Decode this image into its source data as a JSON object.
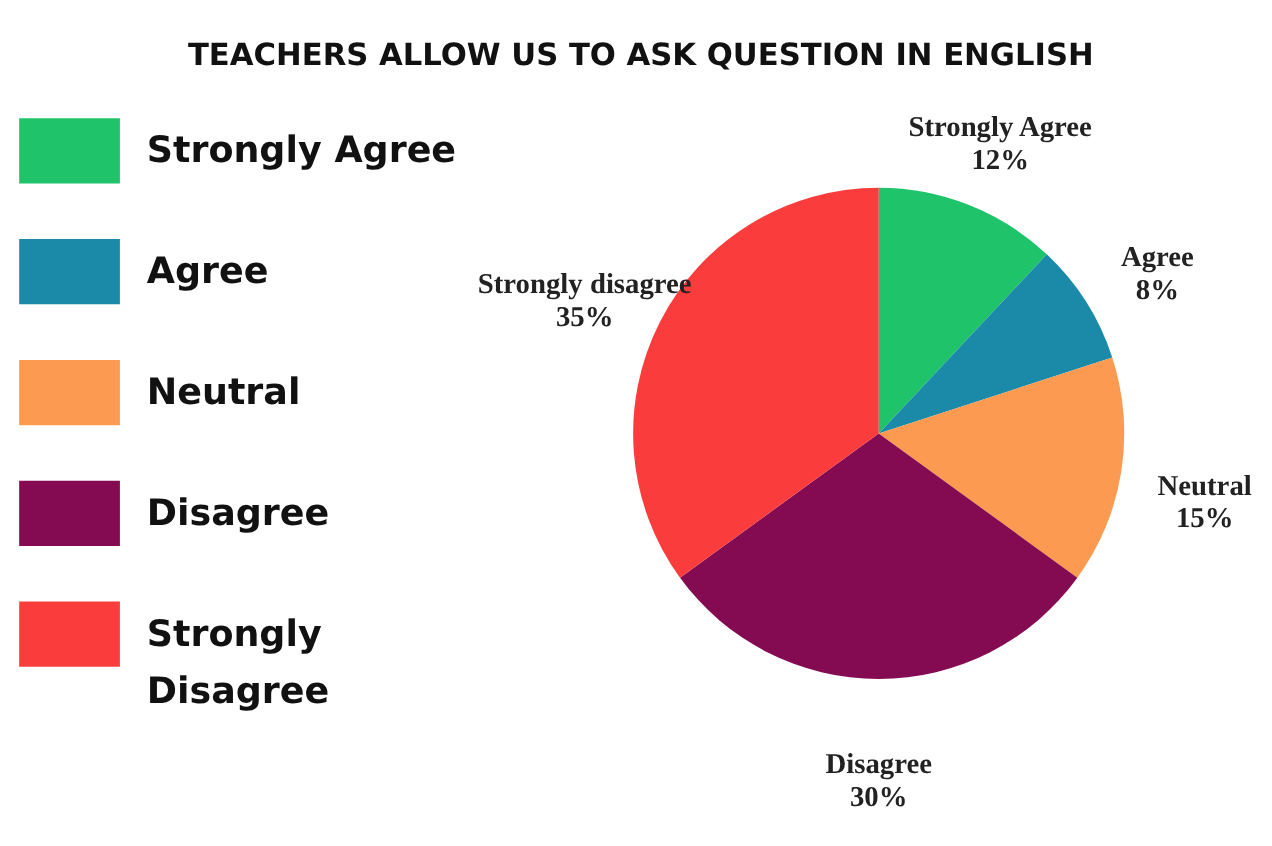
{
  "chart_data": {
    "type": "pie",
    "title": "TEACHERS ALLOW US TO ASK QUESTION IN ENGLISH",
    "categories": [
      "Strongly Agree",
      "Agree",
      "Neutral",
      "Disagree",
      "Strongly Disagree"
    ],
    "values": [
      12,
      8,
      15,
      30,
      35
    ],
    "colors": [
      "#1fc46a",
      "#1b8aa8",
      "#fb9a50",
      "#840a52",
      "#fb3c3c"
    ],
    "value_labels": [
      "Strongly Agree\n12%",
      "Agree\n8%",
      "Neutral\n15%",
      "Disagree\n30%",
      "Strongly disagree\n35%"
    ],
    "legend": "left"
  }
}
